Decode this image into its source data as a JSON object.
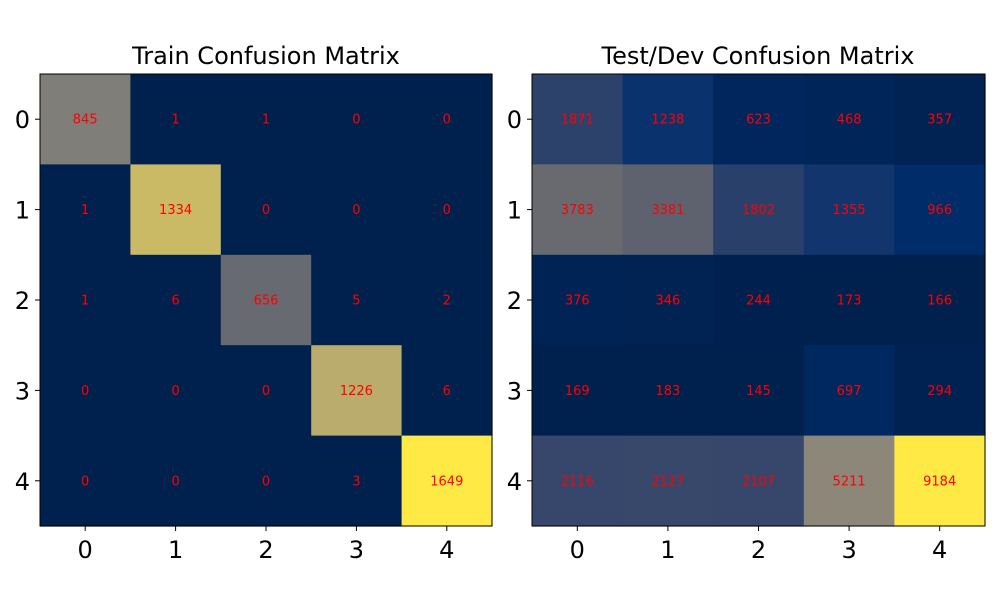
{
  "chart_data": [
    {
      "type": "heatmap",
      "title": "Train Confusion Matrix",
      "x_categories": [
        "0",
        "1",
        "2",
        "3",
        "4"
      ],
      "y_categories": [
        "0",
        "1",
        "2",
        "3",
        "4"
      ],
      "values": [
        [
          845,
          1,
          1,
          0,
          0
        ],
        [
          1,
          1334,
          0,
          0,
          0
        ],
        [
          1,
          6,
          656,
          5,
          2
        ],
        [
          0,
          0,
          0,
          1226,
          6
        ],
        [
          0,
          0,
          0,
          3,
          1649
        ]
      ],
      "colormap": "cividis",
      "annotation_color": "#ff0000",
      "grid": false,
      "legend": "none"
    },
    {
      "type": "heatmap",
      "title": "Test/Dev Confusion Matrix",
      "x_categories": [
        "0",
        "1",
        "2",
        "3",
        "4"
      ],
      "y_categories": [
        "0",
        "1",
        "2",
        "3",
        "4"
      ],
      "values": [
        [
          1871,
          1238,
          623,
          468,
          357
        ],
        [
          3783,
          3381,
          1802,
          1355,
          966
        ],
        [
          376,
          346,
          244,
          173,
          166
        ],
        [
          169,
          183,
          145,
          697,
          294
        ],
        [
          2116,
          2127,
          2107,
          5211,
          9184
        ]
      ],
      "colormap": "cividis",
      "annotation_color": "#ff0000",
      "grid": false,
      "legend": "none"
    }
  ]
}
